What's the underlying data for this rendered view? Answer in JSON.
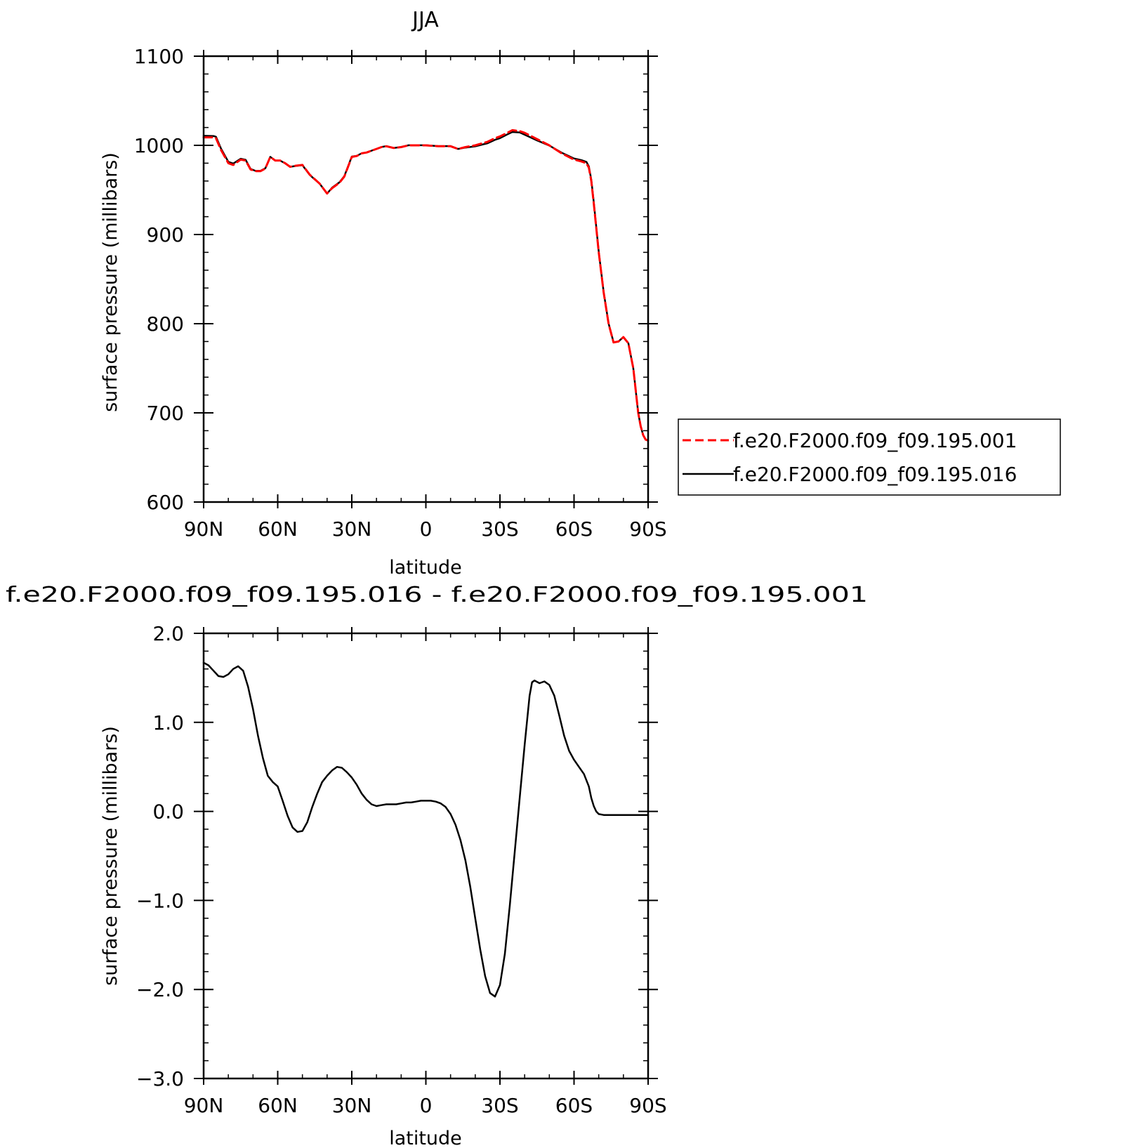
{
  "chart_data": [
    {
      "type": "line",
      "title": "JJA",
      "xlabel": "latitude",
      "ylabel": "surface pressure (millibars)",
      "xlim": [
        90,
        -90
      ],
      "ylim": [
        600,
        1100
      ],
      "x_tick_values": [
        90,
        60,
        30,
        0,
        -30,
        -60,
        -90
      ],
      "x_tick_labels": [
        "90N",
        "60N",
        "30N",
        "0",
        "30S",
        "60S",
        "90S"
      ],
      "y_tick_values": [
        600,
        700,
        800,
        900,
        1000,
        1100
      ],
      "y_tick_labels": [
        "600",
        "700",
        "800",
        "900",
        "1000",
        "1100"
      ],
      "grid": false,
      "legend_position": "right",
      "series": [
        {
          "name": "f.e20.F2000.f09_f09.195.001",
          "color": "#ff0000",
          "style": "dashed",
          "x": [
            90,
            86,
            85,
            83,
            80,
            78,
            75,
            73,
            71,
            69,
            67,
            65,
            63,
            61,
            59,
            57,
            55,
            53,
            50,
            47,
            45,
            43,
            40,
            38,
            35,
            33,
            30,
            28,
            26,
            24,
            20,
            18,
            16,
            13,
            10,
            7,
            5,
            0,
            -5,
            -10,
            -13,
            -16,
            -20,
            -25,
            -28,
            -30,
            -33,
            -35,
            -38,
            -40,
            -45,
            -50,
            -55,
            -60,
            -63,
            -65,
            -66,
            -67,
            -68,
            -70,
            -72,
            -74,
            -76,
            -78,
            -80,
            -82,
            -84,
            -85,
            -86,
            -87,
            -88,
            -89,
            -90
          ],
          "y": [
            1009,
            1009,
            1008,
            995,
            980,
            978,
            984,
            983,
            973,
            971,
            971,
            974,
            987,
            983,
            983,
            980,
            976,
            977,
            978,
            967,
            962,
            957,
            946,
            952,
            958,
            965,
            987,
            988,
            991,
            992,
            996,
            998,
            999,
            997,
            998,
            1000,
            1000,
            1000,
            999,
            999,
            996,
            998,
            1000,
            1004,
            1008,
            1010,
            1014,
            1017,
            1016,
            1014,
            1007,
            1000,
            991,
            984,
            982,
            980,
            975,
            960,
            935,
            880,
            835,
            800,
            779,
            780,
            785,
            778,
            750,
            725,
            700,
            685,
            675,
            670,
            669
          ]
        },
        {
          "name": "f.e20.F2000.f09_f09.195.016",
          "color": "#000000",
          "style": "solid",
          "x": [
            90,
            86,
            85,
            83,
            80,
            78,
            75,
            73,
            71,
            69,
            67,
            65,
            63,
            61,
            59,
            57,
            55,
            53,
            50,
            47,
            45,
            43,
            40,
            38,
            35,
            33,
            30,
            28,
            26,
            24,
            20,
            18,
            16,
            13,
            10,
            7,
            5,
            0,
            -5,
            -10,
            -13,
            -16,
            -20,
            -25,
            -28,
            -30,
            -33,
            -35,
            -38,
            -40,
            -45,
            -50,
            -55,
            -60,
            -63,
            -65,
            -66,
            -67,
            -68,
            -70,
            -72,
            -74,
            -76,
            -78,
            -80,
            -82,
            -84,
            -85,
            -86,
            -87,
            -88,
            -89,
            -90
          ],
          "y": [
            1010.7,
            1010.5,
            1009.6,
            996.6,
            981.5,
            979.6,
            985.0,
            983.8,
            973.6,
            971.3,
            971.3,
            974.3,
            987.1,
            983.0,
            982.9,
            979.8,
            975.9,
            976.8,
            977.8,
            966.8,
            961.7,
            957.0,
            945.8,
            952.5,
            958.5,
            965.5,
            987.4,
            988.2,
            991.1,
            992.0,
            996.1,
            998.1,
            999.1,
            997.1,
            998.1,
            1000.1,
            1000.1,
            1000.1,
            999.1,
            999.1,
            996.0,
            997.5,
            998.9,
            1002.4,
            1006.2,
            1008.0,
            1012.3,
            1015.0,
            1014.5,
            1012.0,
            1005.5,
            999.8,
            991.7,
            985.3,
            983.4,
            981.5,
            976.4,
            961.3,
            936.2,
            880.6,
            835.4,
            800.2,
            779.1,
            780.1,
            785.0,
            778.0,
            750.0,
            725.0,
            700.0,
            685.0,
            675.0,
            670.0,
            669.0
          ]
        }
      ]
    },
    {
      "type": "line",
      "title": "f.e20.F2000.f09_f09.195.016 - f.e20.F2000.f09_f09.195.001",
      "xlabel": "latitude",
      "ylabel": "surface pressure (millibars)",
      "xlim": [
        90,
        -90
      ],
      "ylim": [
        -3.0,
        2.0
      ],
      "x_tick_values": [
        90,
        60,
        30,
        0,
        -30,
        -60,
        -90
      ],
      "x_tick_labels": [
        "90N",
        "60N",
        "30N",
        "0",
        "30S",
        "60S",
        "90S"
      ],
      "y_tick_values": [
        -3.0,
        -2.0,
        -1.0,
        0.0,
        1.0,
        2.0
      ],
      "y_tick_labels": [
        "-3.0",
        "-2.0",
        "-1.0",
        "0.0",
        "1.0",
        "2.0"
      ],
      "grid": false,
      "series": [
        {
          "color": "#000000",
          "style": "solid",
          "x": [
            90,
            88,
            86,
            84,
            82,
            80,
            78,
            76,
            74,
            72,
            70,
            68,
            66,
            64,
            62,
            60,
            58,
            56,
            54,
            52,
            50,
            48,
            46,
            44,
            42,
            40,
            38,
            36,
            34,
            32,
            30,
            28,
            26,
            24,
            22,
            20,
            18,
            16,
            14,
            12,
            10,
            8,
            6,
            4,
            2,
            0,
            -2,
            -4,
            -6,
            -8,
            -10,
            -12,
            -14,
            -16,
            -18,
            -20,
            -22,
            -24,
            -26,
            -28,
            -30,
            -32,
            -34,
            -36,
            -38,
            -40,
            -42,
            -43,
            -44,
            -46,
            -48,
            -50,
            -52,
            -54,
            -56,
            -58,
            -60,
            -62,
            -64,
            -65,
            -66,
            -67,
            -68,
            -69,
            -70,
            -72,
            -74,
            -76,
            -78,
            -80,
            -82,
            -84,
            -86,
            -88,
            -90
          ],
          "y": [
            1.67,
            1.64,
            1.58,
            1.52,
            1.51,
            1.54,
            1.6,
            1.63,
            1.58,
            1.4,
            1.15,
            0.85,
            0.6,
            0.4,
            0.33,
            0.28,
            0.12,
            -0.05,
            -0.18,
            -0.23,
            -0.22,
            -0.12,
            0.05,
            0.2,
            0.33,
            0.4,
            0.46,
            0.5,
            0.49,
            0.44,
            0.38,
            0.3,
            0.2,
            0.13,
            0.08,
            0.06,
            0.07,
            0.08,
            0.08,
            0.08,
            0.09,
            0.1,
            0.1,
            0.11,
            0.12,
            0.12,
            0.12,
            0.11,
            0.09,
            0.05,
            -0.03,
            -0.15,
            -0.32,
            -0.55,
            -0.85,
            -1.2,
            -1.55,
            -1.85,
            -2.04,
            -2.08,
            -1.95,
            -1.6,
            -1.05,
            -0.45,
            0.15,
            0.75,
            1.3,
            1.45,
            1.47,
            1.44,
            1.46,
            1.42,
            1.3,
            1.08,
            0.85,
            0.68,
            0.58,
            0.5,
            0.42,
            0.35,
            0.28,
            0.15,
            0.06,
            0.0,
            -0.03,
            -0.04,
            -0.04,
            -0.04,
            -0.04,
            -0.04,
            -0.04,
            -0.04,
            -0.04,
            -0.04,
            -0.04
          ]
        }
      ]
    }
  ]
}
